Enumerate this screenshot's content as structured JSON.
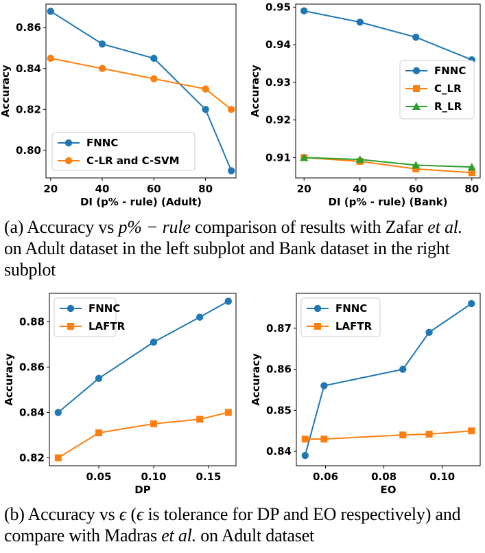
{
  "chart_data": [
    {
      "type": "line",
      "xlabel": "DI (p% - rule) (Adult)",
      "ylabel": "Accuracy",
      "xlim": [
        18.2,
        91.8
      ],
      "ylim": [
        0.7865,
        0.8715
      ],
      "xticks": [
        20,
        40,
        60,
        80
      ],
      "yticks": [
        0.8,
        0.82,
        0.84,
        0.86
      ],
      "xtick_labels": [
        "20",
        "40",
        "60",
        "80"
      ],
      "ytick_labels": [
        "0.80",
        "0.82",
        "0.84",
        "0.86"
      ],
      "legend": "lower-left",
      "series": [
        {
          "name": "FNNC",
          "color": "#1f77b4",
          "marker": "circle",
          "x": [
            20,
            40,
            60,
            80,
            90
          ],
          "y": [
            0.868,
            0.852,
            0.845,
            0.82,
            0.79
          ]
        },
        {
          "name": "C-LR and C-SVM",
          "color": "#ff7f0e",
          "marker": "circle",
          "x": [
            20,
            40,
            60,
            80,
            90
          ],
          "y": [
            0.845,
            0.84,
            0.835,
            0.83,
            0.82
          ]
        }
      ]
    },
    {
      "type": "line",
      "xlabel": "DI (p% - rule) (Bank)",
      "ylabel": "Accuracy",
      "xlim": [
        17.0,
        83.0
      ],
      "ylim": [
        0.9046,
        0.9508
      ],
      "xticks": [
        20,
        40,
        60,
        80
      ],
      "yticks": [
        0.91,
        0.92,
        0.93,
        0.94,
        0.95
      ],
      "xtick_labels": [
        "20",
        "40",
        "60",
        "80"
      ],
      "ytick_labels": [
        "0.91",
        "0.92",
        "0.93",
        "0.94",
        "0.95"
      ],
      "legend": "center-right",
      "series": [
        {
          "name": "FNNC",
          "color": "#1f77b4",
          "marker": "circle",
          "x": [
            20,
            40,
            60,
            80
          ],
          "y": [
            0.949,
            0.946,
            0.942,
            0.936
          ]
        },
        {
          "name": "C_LR",
          "color": "#ff7f0e",
          "marker": "square",
          "x": [
            20,
            40,
            60,
            80
          ],
          "y": [
            0.91,
            0.909,
            0.907,
            0.906
          ]
        },
        {
          "name": "R_LR",
          "color": "#2ca02c",
          "marker": "triangle",
          "x": [
            20,
            40,
            60,
            80
          ],
          "y": [
            0.91,
            0.9095,
            0.908,
            0.9075
          ]
        }
      ]
    },
    {
      "type": "line",
      "xlabel": "DP",
      "ylabel": "Accuracy",
      "xlim": [
        0.005,
        0.175
      ],
      "ylim": [
        0.8165,
        0.8925
      ],
      "xticks": [
        0.05,
        0.1,
        0.15
      ],
      "yticks": [
        0.82,
        0.84,
        0.86,
        0.88
      ],
      "xtick_labels": [
        "0.05",
        "0.10",
        "0.15"
      ],
      "ytick_labels": [
        "0.82",
        "0.84",
        "0.86",
        "0.88"
      ],
      "legend": "top-left",
      "series": [
        {
          "name": "FNNC",
          "color": "#1f77b4",
          "marker": "circle",
          "x": [
            0.013,
            0.05,
            0.1,
            0.142,
            0.168
          ],
          "y": [
            0.84,
            0.855,
            0.871,
            0.882,
            0.889
          ]
        },
        {
          "name": "LAFTR",
          "color": "#ff7f0e",
          "marker": "square",
          "x": [
            0.013,
            0.05,
            0.1,
            0.142,
            0.168
          ],
          "y": [
            0.82,
            0.831,
            0.835,
            0.837,
            0.84
          ]
        }
      ]
    },
    {
      "type": "line",
      "xlabel": "EO",
      "ylabel": "Accuracy",
      "xlim": [
        0.05,
        0.113
      ],
      "ylim": [
        0.8365,
        0.8785
      ],
      "xticks": [
        0.06,
        0.08,
        0.1
      ],
      "yticks": [
        0.84,
        0.85,
        0.86,
        0.87
      ],
      "xtick_labels": [
        "0.06",
        "0.08",
        "0.10"
      ],
      "ytick_labels": [
        "0.84",
        "0.85",
        "0.86",
        "0.87"
      ],
      "legend": "top-left",
      "series": [
        {
          "name": "FNNC",
          "color": "#1f77b4",
          "marker": "circle",
          "x": [
            0.053,
            0.0595,
            0.0865,
            0.0955,
            0.11
          ],
          "y": [
            0.839,
            0.856,
            0.86,
            0.869,
            0.876
          ]
        },
        {
          "name": "LAFTR",
          "color": "#ff7f0e",
          "marker": "square",
          "x": [
            0.053,
            0.0595,
            0.0865,
            0.0955,
            0.11
          ],
          "y": [
            0.843,
            0.843,
            0.844,
            0.8442,
            0.845
          ]
        }
      ]
    }
  ],
  "captions": {
    "a": {
      "prefix": "(a)  Accuracy vs ",
      "math": "p% − rule",
      "middle": " comparison of results with Zafar ",
      "etal": "et al.",
      "suffix": " on Adult dataset in the left subplot and Bank dataset in the right subplot"
    },
    "b": {
      "prefix": "(b) Accuracy vs ",
      "eps1": "ϵ",
      "middle1": " (",
      "eps2": "ϵ",
      "middle2": " is tolerance for DP and EO respectively) and compare with Madras ",
      "etal": "et al.",
      "suffix": " on Adult dataset"
    }
  }
}
